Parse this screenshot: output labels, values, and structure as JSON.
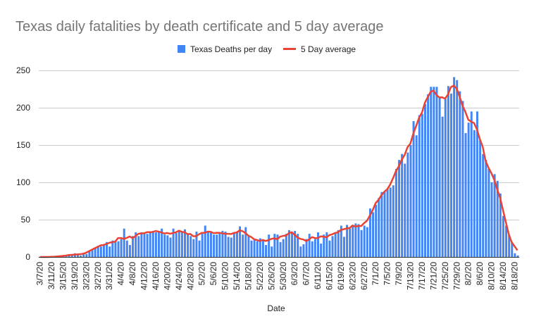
{
  "chart_data": {
    "type": "bar",
    "title": "Texas daily fatalities by death certificate and 5 day average",
    "xlabel": "Date",
    "ylabel": "",
    "ylim": [
      0,
      250
    ],
    "yticks": [
      0,
      50,
      100,
      150,
      200,
      250
    ],
    "grid": true,
    "legend_position": "top-center",
    "start_date": "3/7/20",
    "label_every_days": 4,
    "colors": {
      "bars": "#4285f4",
      "line": "#ea4335",
      "grid": "#cccccc",
      "title": "#757575",
      "text": "#222222"
    },
    "series": [
      {
        "name": "Texas Deaths per day",
        "type": "bar",
        "values": [
          0,
          0,
          0,
          0,
          0,
          0,
          1,
          1,
          2,
          1,
          2,
          3,
          5,
          3,
          2,
          5,
          4,
          8,
          10,
          12,
          15,
          14,
          17,
          20,
          14,
          22,
          22,
          21,
          24,
          38,
          22,
          16,
          28,
          33,
          28,
          33,
          33,
          31,
          34,
          35,
          33,
          34,
          38,
          30,
          29,
          26,
          38,
          32,
          36,
          33,
          37,
          31,
          28,
          24,
          34,
          22,
          31,
          42,
          33,
          34,
          30,
          30,
          33,
          35,
          34,
          27,
          26,
          33,
          34,
          41,
          30,
          40,
          28,
          22,
          23,
          21,
          25,
          22,
          16,
          30,
          14,
          31,
          30,
          20,
          24,
          31,
          36,
          33,
          35,
          31,
          14,
          17,
          24,
          31,
          21,
          24,
          33,
          18,
          30,
          33,
          22,
          28,
          33,
          36,
          42,
          27,
          43,
          38,
          41,
          45,
          44,
          36,
          42,
          40,
          65,
          60,
          70,
          79,
          87,
          87,
          91,
          93,
          96,
          118,
          130,
          138,
          125,
          140,
          150,
          182,
          163,
          190,
          192,
          205,
          218,
          228,
          228,
          228,
          213,
          188,
          212,
          229,
          219,
          241,
          237,
          222,
          209,
          166,
          180,
          195,
          170,
          195,
          157,
          138,
          130,
          118,
          100,
          111,
          102,
          85,
          55,
          42,
          30,
          20,
          5,
          2
        ]
      },
      {
        "name": "5 Day average",
        "type": "line",
        "derived_from": "Texas Deaths per day",
        "window": 5
      }
    ]
  }
}
